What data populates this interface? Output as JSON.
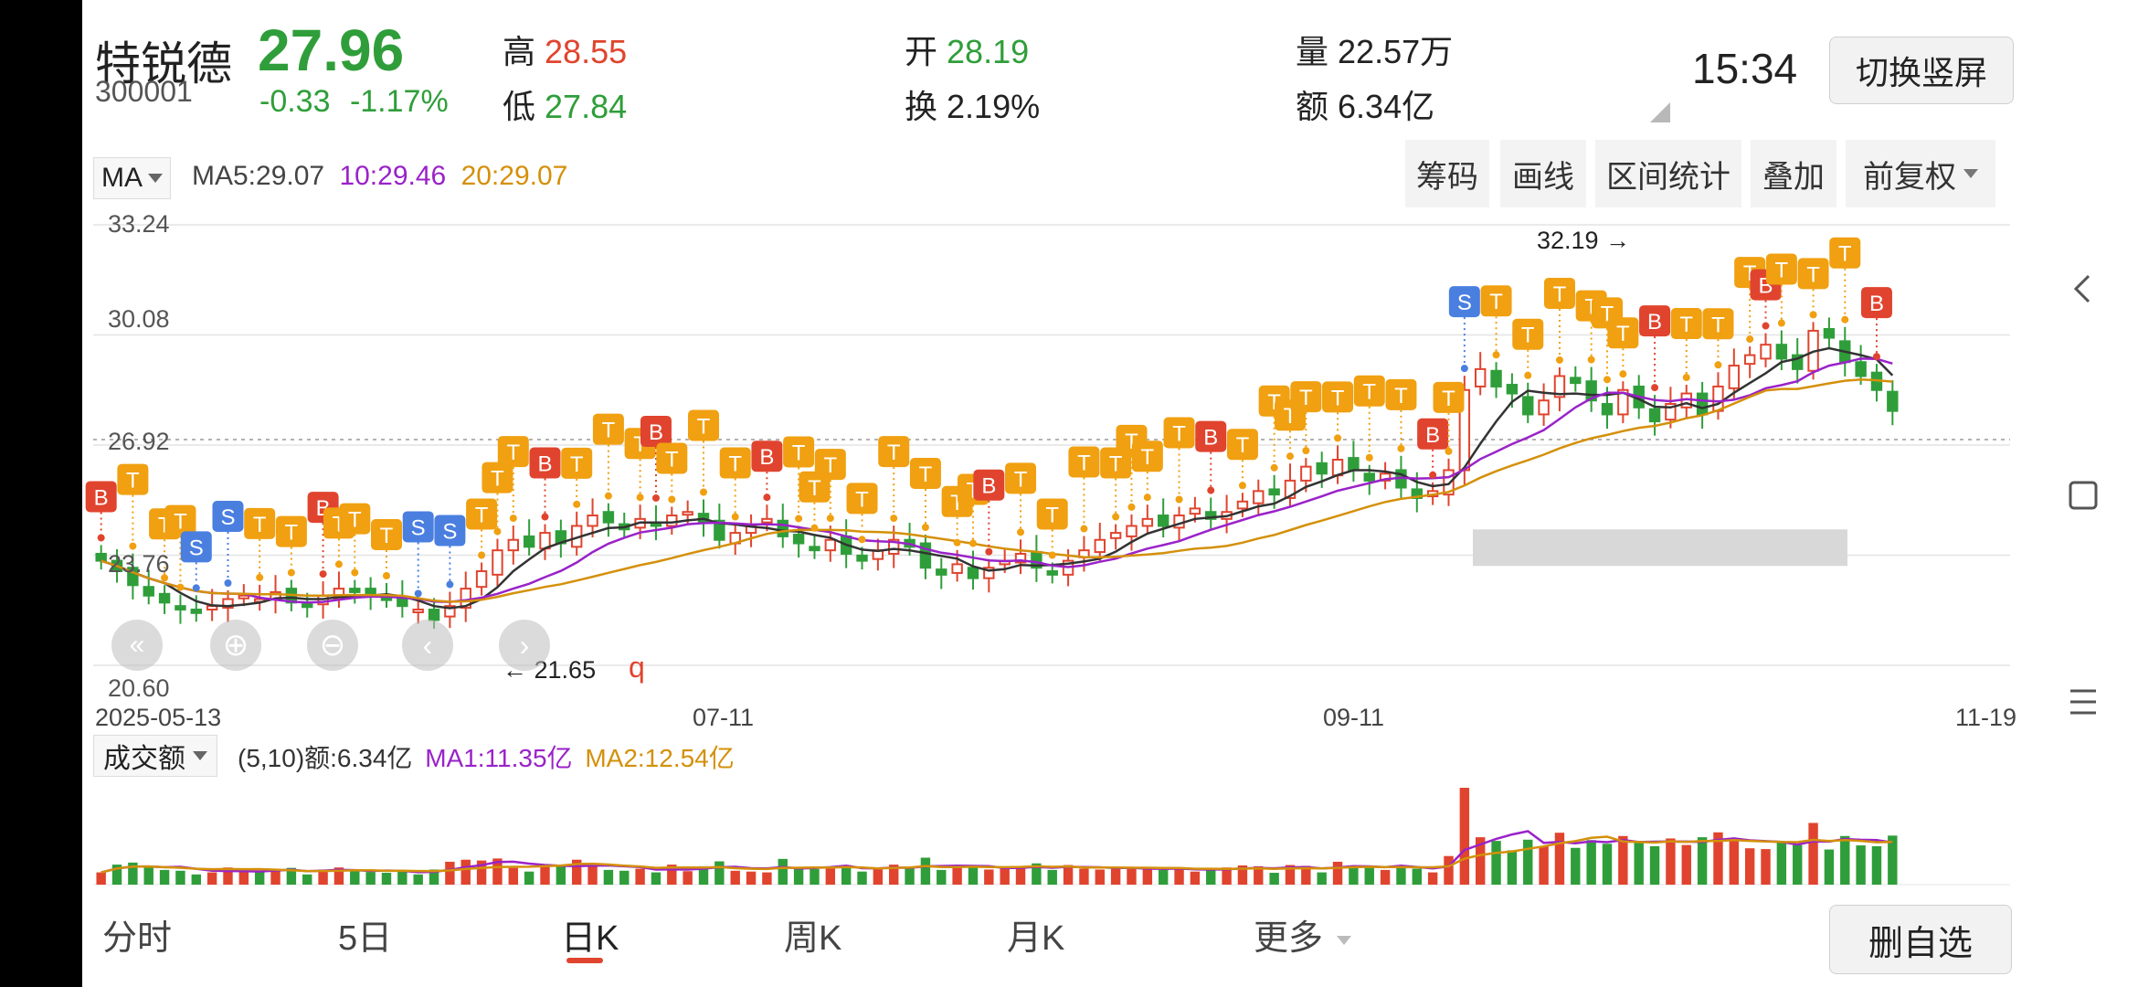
{
  "header": {
    "name": "特锐德",
    "code": "300001",
    "price": "27.96",
    "change": "-0.33",
    "change_pct": "-1.17%",
    "high_label": "高",
    "high": "28.55",
    "low_label": "低",
    "low": "27.84",
    "open_label": "开",
    "open": "28.19",
    "turnover_label": "换",
    "turnover": "2.19%",
    "volume_label": "量",
    "volume": "22.57万",
    "amount_label": "额",
    "amount": "6.34亿",
    "time": "15:34",
    "switch_button": "切换竖屏"
  },
  "indicator_bar": {
    "selector": "MA",
    "ma5": "MA5:29.07",
    "ma10": "10:29.46",
    "ma20": "20:29.07",
    "buttons": [
      "筹码",
      "画线",
      "区间统计",
      "叠加",
      "前复权"
    ]
  },
  "price_chart": {
    "y_labels": [
      "33.24",
      "30.08",
      "26.92",
      "23.76",
      "20.60"
    ],
    "x_labels": [
      "2025-05-13",
      "07-11",
      "09-11",
      "11-19"
    ],
    "max_marker": "32.19",
    "min_marker": "21.65",
    "q_marker": "q"
  },
  "volume_bar": {
    "selector": "成交额",
    "param": "(5,10)额:6.34亿",
    "ma1": "MA1:11.35亿",
    "ma2": "MA2:12.54亿"
  },
  "bottom_tabs": [
    "分时",
    "5日",
    "日K",
    "周K",
    "月K",
    "更多"
  ],
  "delete_button": "删自选",
  "colors": {
    "up": "#e0442e",
    "down": "#2f9e3a",
    "ma5": "#333333",
    "ma10": "#9a22c9",
    "ma20": "#d4900a",
    "signal_t": "#f0a010",
    "signal_b": "#e0442e",
    "signal_s": "#4a7fe0"
  },
  "chart_data": {
    "type": "candlestick",
    "price_axis": [
      20.6,
      33.24
    ],
    "closes": [
      23.6,
      23.3,
      22.9,
      22.6,
      22.4,
      22.2,
      22.1,
      22.3,
      22.5,
      22.6,
      22.5,
      22.7,
      22.4,
      22.3,
      22.6,
      22.8,
      22.7,
      22.6,
      22.5,
      22.3,
      22.2,
      21.9,
      22.3,
      22.8,
      23.3,
      23.9,
      24.2,
      24.0,
      24.4,
      24.1,
      24.6,
      24.9,
      24.7,
      24.5,
      24.8,
      24.6,
      24.9,
      25.0,
      24.7,
      24.2,
      24.4,
      24.6,
      24.8,
      24.3,
      24.1,
      23.9,
      24.2,
      23.8,
      23.6,
      23.9,
      24.2,
      24.0,
      23.4,
      23.2,
      23.5,
      23.1,
      23.4,
      23.6,
      23.8,
      23.4,
      23.2,
      23.6,
      23.9,
      24.2,
      24.4,
      24.6,
      24.8,
      24.6,
      24.9,
      25.1,
      24.8,
      25.0,
      25.3,
      25.6,
      25.5,
      25.9,
      26.3,
      26.1,
      26.5,
      26.2,
      25.9,
      26.1,
      25.7,
      25.4,
      25.6,
      26.2,
      28.5,
      29.1,
      28.6,
      28.4,
      27.8,
      28.2,
      28.9,
      28.7,
      28.2,
      27.8,
      28.5,
      28.0,
      27.6,
      28.1,
      28.4,
      27.8,
      28.6,
      29.2,
      29.5,
      29.8,
      29.4,
      29.1,
      30.2,
      30.0,
      29.3,
      28.9,
      28.5,
      27.9
    ],
    "ma_series": [
      "MA5",
      "MA10",
      "MA20"
    ]
  }
}
